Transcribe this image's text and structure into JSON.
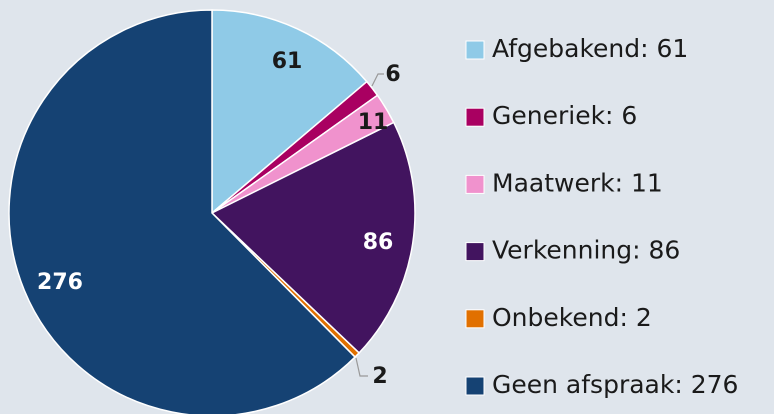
{
  "chart_data": {
    "type": "pie",
    "categories": [
      "Afgebakend: 61",
      "Generiek: 6",
      "Maatwerk: 11",
      "Verkenning: 86",
      "Onbekend: 2",
      "Geen afspraak: 276"
    ],
    "values": [
      61,
      6,
      11,
      86,
      2,
      276
    ],
    "colors": [
      "#8fcae7",
      "#a90061",
      "#f092cd",
      "#42145f",
      "#e17000",
      "#154273"
    ]
  }
}
